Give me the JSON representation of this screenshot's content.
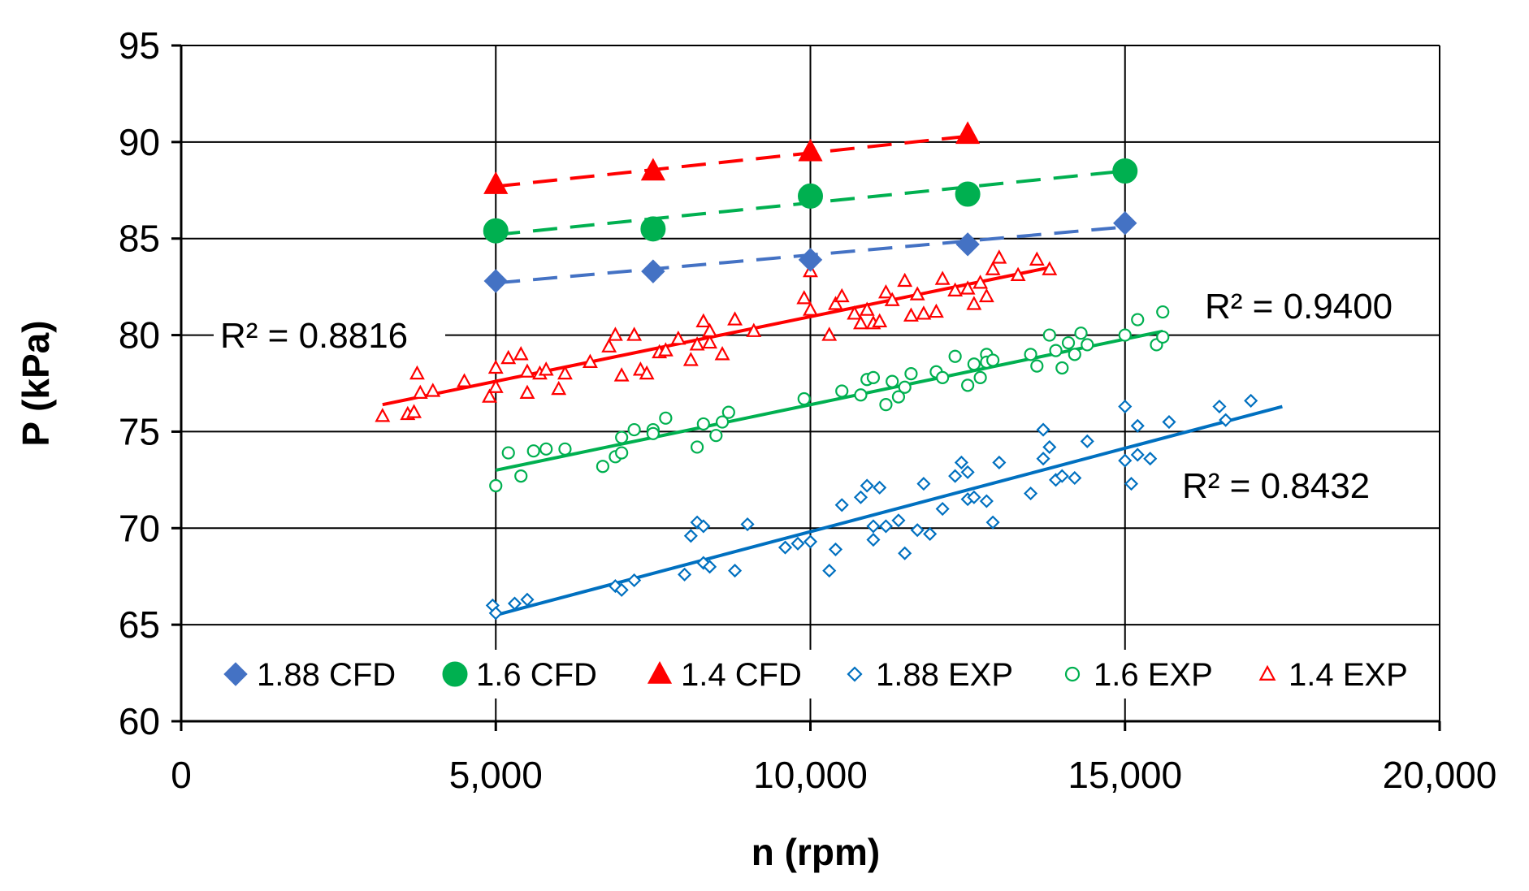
{
  "chart_data": {
    "type": "scatter",
    "title": "",
    "xlabel": "n (rpm)",
    "ylabel": "P (kPa)",
    "xlim": [
      0,
      20000
    ],
    "ylim": [
      60,
      95
    ],
    "x_ticks": [
      0,
      5000,
      10000,
      15000,
      20000
    ],
    "x_tick_labels": [
      "0",
      "5,000",
      "10,000",
      "15,000",
      "20,000"
    ],
    "y_ticks": [
      60,
      65,
      70,
      75,
      80,
      85,
      90,
      95
    ],
    "y_tick_labels": [
      "60",
      "65",
      "70",
      "75",
      "80",
      "85",
      "90",
      "95"
    ],
    "grid": "major both, shown from x=5000 to x=20000 region",
    "legend_position": "bottom inside plot",
    "series": [
      {
        "name": "1.88 CFD",
        "color": "#4472c4",
        "marker": "diamond-filled",
        "x": [
          5000,
          7500,
          10000,
          12500,
          15000
        ],
        "y": [
          82.8,
          83.3,
          83.9,
          84.7,
          85.8
        ],
        "trendline": {
          "style": "dashed",
          "x": [
            5000,
            15000
          ],
          "y": [
            82.7,
            85.6
          ]
        }
      },
      {
        "name": "1.6 CFD",
        "color": "#00b050",
        "marker": "circle-filled",
        "x": [
          5000,
          7500,
          10000,
          12500,
          15000
        ],
        "y": [
          85.4,
          85.5,
          87.2,
          87.3,
          88.5
        ],
        "trendline": {
          "style": "dashed",
          "x": [
            5000,
            15000
          ],
          "y": [
            85.2,
            88.5
          ]
        }
      },
      {
        "name": "1.4 CFD",
        "color": "#ff0000",
        "marker": "triangle-filled",
        "x": [
          5000,
          7500,
          10000,
          12500
        ],
        "y": [
          87.8,
          88.5,
          89.5,
          90.4
        ],
        "trendline": {
          "style": "dashed",
          "x": [
            5000,
            12500
          ],
          "y": [
            87.7,
            90.3
          ]
        }
      },
      {
        "name": "1.88 EXP",
        "color": "#0070c0",
        "marker": "diamond-open",
        "x": [
          4950,
          5000,
          5300,
          5500,
          6900,
          7000,
          7200,
          8000,
          8100,
          8200,
          8300,
          8300,
          8400,
          8800,
          9000,
          9600,
          9800,
          10000,
          10300,
          10400,
          10500,
          10800,
          10900,
          11000,
          11000,
          11100,
          11200,
          11400,
          11500,
          11700,
          11800,
          11900,
          12100,
          12300,
          12400,
          12500,
          12500,
          12600,
          12800,
          12900,
          13000,
          13500,
          13700,
          13700,
          13800,
          13900,
          14000,
          14200,
          14400,
          15000,
          15000,
          15100,
          15200,
          15200,
          15400,
          15700,
          16500,
          16600,
          17000
        ],
        "y": [
          66.0,
          65.6,
          66.1,
          66.3,
          67.0,
          66.8,
          67.3,
          67.6,
          69.6,
          70.3,
          68.2,
          70.1,
          68.0,
          67.8,
          70.2,
          69.0,
          69.2,
          69.3,
          67.8,
          68.9,
          71.2,
          71.6,
          72.2,
          70.1,
          69.4,
          72.1,
          70.1,
          70.4,
          68.7,
          69.9,
          72.3,
          69.7,
          71.0,
          72.7,
          73.4,
          71.5,
          72.9,
          71.6,
          71.4,
          70.3,
          73.4,
          71.8,
          73.6,
          75.1,
          74.2,
          72.5,
          72.7,
          72.6,
          74.5,
          73.5,
          76.3,
          72.3,
          73.8,
          75.3,
          73.6,
          75.5,
          76.3,
          75.6,
          76.6
        ],
        "trendline": {
          "style": "solid",
          "x": [
            5000,
            17500
          ],
          "y": [
            65.5,
            76.3
          ],
          "r2_label": "R² = 0.8432"
        }
      },
      {
        "name": "1.6 EXP",
        "color": "#00b050",
        "marker": "circle-open",
        "x": [
          5000,
          5200,
          5400,
          5600,
          5800,
          6100,
          6700,
          6900,
          7000,
          7000,
          7200,
          7500,
          7500,
          7700,
          8200,
          8300,
          8500,
          8600,
          8700,
          9900,
          10500,
          10800,
          10900,
          11000,
          11200,
          11300,
          11400,
          11500,
          11600,
          12000,
          12100,
          12300,
          12500,
          12600,
          12700,
          12800,
          12800,
          12900,
          13500,
          13600,
          13800,
          13900,
          14000,
          14100,
          14200,
          14300,
          14400,
          15000,
          15200,
          15500,
          15600,
          15600
        ],
        "y": [
          72.2,
          73.9,
          72.7,
          74.0,
          74.1,
          74.1,
          73.2,
          73.7,
          74.7,
          73.9,
          75.1,
          75.1,
          74.9,
          75.7,
          74.2,
          75.4,
          74.8,
          75.5,
          76.0,
          76.7,
          77.1,
          76.9,
          77.7,
          77.8,
          76.4,
          77.6,
          76.8,
          77.3,
          78.0,
          78.1,
          77.8,
          78.9,
          77.4,
          78.5,
          77.8,
          79.0,
          78.6,
          78.7,
          79.0,
          78.4,
          80.0,
          79.2,
          78.3,
          79.6,
          79.0,
          80.1,
          79.5,
          80.0,
          80.8,
          79.5,
          81.2,
          79.9
        ],
        "trendline": {
          "style": "solid",
          "x": [
            5000,
            15600
          ],
          "y": [
            73.0,
            80.2
          ],
          "r2_label": "R² = 0.9400"
        }
      },
      {
        "name": "1.4 EXP",
        "color": "#ff0000",
        "marker": "triangle-open",
        "x": [
          3200,
          3600,
          3700,
          3750,
          3800,
          4000,
          4500,
          4900,
          5000,
          5000,
          5200,
          5400,
          5500,
          5500,
          5700,
          5800,
          6000,
          6100,
          6500,
          6800,
          6900,
          7000,
          7200,
          7300,
          7400,
          7600,
          7700,
          7900,
          8100,
          8200,
          8300,
          8400,
          8400,
          8600,
          8800,
          9100,
          9900,
          10000,
          10000,
          10300,
          10400,
          10500,
          10700,
          10800,
          10900,
          11000,
          11100,
          11200,
          11300,
          11500,
          11600,
          11700,
          11800,
          12000,
          12100,
          12300,
          12500,
          12600,
          12700,
          12800,
          12900,
          13000,
          13300,
          13600,
          13800
        ],
        "y": [
          75.8,
          75.9,
          76.0,
          78.0,
          77.0,
          77.1,
          77.6,
          76.8,
          78.3,
          77.3,
          78.8,
          79.0,
          77.0,
          78.1,
          78.0,
          78.2,
          77.2,
          78.0,
          78.6,
          79.4,
          80.0,
          77.9,
          80.0,
          78.2,
          78.0,
          79.1,
          79.2,
          79.8,
          78.7,
          79.5,
          80.7,
          79.6,
          80.2,
          79.0,
          80.8,
          80.2,
          81.9,
          81.3,
          83.3,
          80.0,
          81.6,
          82.0,
          81.1,
          80.6,
          81.3,
          80.6,
          80.7,
          82.2,
          81.8,
          82.8,
          81.0,
          82.1,
          81.1,
          81.2,
          82.9,
          82.3,
          82.4,
          81.6,
          82.7,
          82.0,
          83.4,
          84.0,
          83.1,
          83.9,
          83.4
        ],
        "trendline": {
          "style": "solid",
          "x": [
            3200,
            13800
          ],
          "y": [
            76.4,
            83.5
          ],
          "r2_label": "R² = 0.8816"
        }
      }
    ]
  }
}
